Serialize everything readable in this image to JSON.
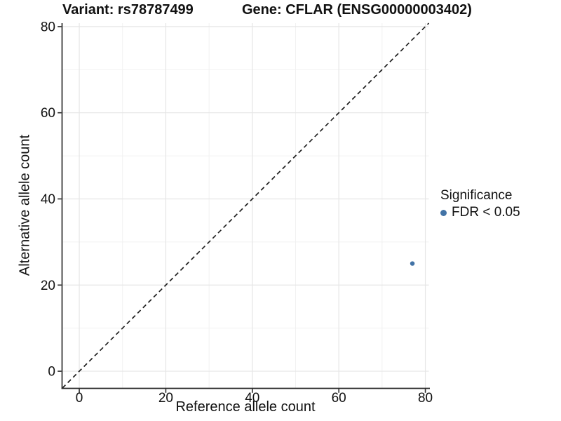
{
  "chart_data": {
    "type": "scatter",
    "title_variant": "Variant: rs78787499",
    "title_gene": "Gene: CFLAR (ENSG00000003402)",
    "xlabel": "Reference allele count",
    "ylabel": "Alternative allele count",
    "xlim": [
      -3.9,
      80.8
    ],
    "ylim": [
      -3.9,
      80.8
    ],
    "x_ticks": [
      0,
      20,
      40,
      60,
      80
    ],
    "y_ticks": [
      0,
      20,
      40,
      60,
      80
    ],
    "x_minor_gridlines": [
      10,
      30,
      50,
      70
    ],
    "y_minor_gridlines": [
      10,
      30,
      50,
      70
    ],
    "grid": "on",
    "identity_line": {
      "equation": "y = x",
      "style": "dashed",
      "color": "#1f1f1f"
    },
    "series": [
      {
        "name": "FDR < 0.05",
        "color": "#4273a6",
        "points": [
          {
            "x": 77,
            "y": 25
          }
        ]
      }
    ],
    "legend": {
      "title": "Significance",
      "position": "right",
      "entries": [
        {
          "label": "FDR < 0.05",
          "color": "#4273a6",
          "marker": "circle"
        }
      ]
    },
    "panel_colors": {
      "background": "#ffffff",
      "major_grid": "#e6e6e6",
      "minor_grid": "#f1f1f1",
      "axis_line": "#2b2b2b",
      "text": "#111111"
    }
  }
}
